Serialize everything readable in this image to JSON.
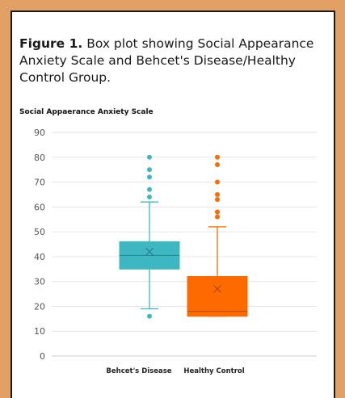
{
  "figure": {
    "label": "Figure 1.",
    "caption": " Box plot showing Social Appearance Anxiety Scale and Behcet's Disease/Healthy Control Group."
  },
  "chart_data": {
    "type": "box",
    "title": "Social Appaerance Anxiety Scale",
    "xlabel": "",
    "ylabel": "",
    "ylim": [
      0,
      90
    ],
    "y_ticks": [
      0,
      10,
      20,
      30,
      40,
      50,
      60,
      70,
      80,
      90
    ],
    "grid": true,
    "categories": [
      "Behcet's Disease",
      "Healthy Control"
    ],
    "colors": [
      "#3db8c3",
      "#ff6a00"
    ],
    "series": [
      {
        "whisker_low": 19,
        "q1": 35,
        "median": 40.5,
        "q3": 46,
        "whisker_high": 62,
        "mean": 42,
        "outliers": [
          16,
          64,
          67,
          72,
          75,
          80
        ]
      },
      {
        "whisker_low": 16,
        "q1": 16,
        "median": 18,
        "q3": 32,
        "whisker_high": 52,
        "mean": 27,
        "outliers": [
          56,
          58,
          63,
          65,
          70,
          77,
          80
        ]
      }
    ]
  }
}
